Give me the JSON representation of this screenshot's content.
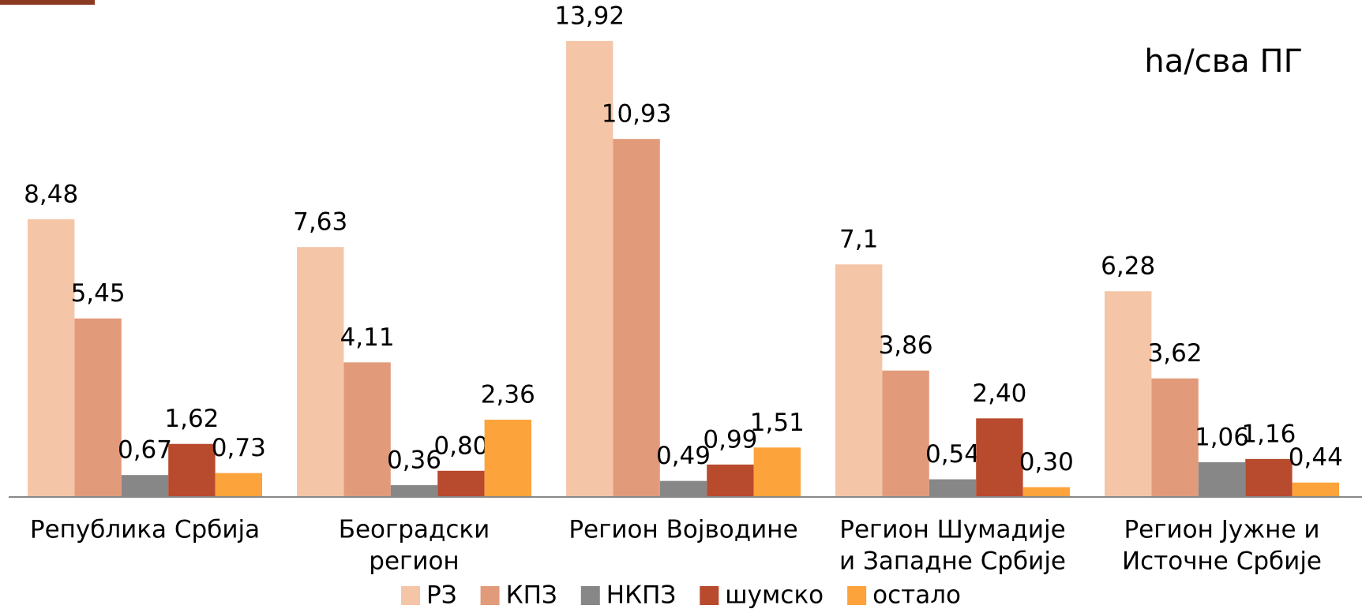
{
  "chart_data": {
    "type": "bar",
    "unit_label": "ha/сва ПГ",
    "categories": [
      [
        "Република Србија"
      ],
      [
        "Београдски",
        "регион"
      ],
      [
        "Регион Војводине"
      ],
      [
        "Регион Шумадије",
        "и Западне Србије"
      ],
      [
        "Регион Јужне и",
        "Источне Србије"
      ]
    ],
    "series": [
      {
        "name": "РЗ",
        "color": "#f5c5a8",
        "values": [
          8.48,
          7.63,
          13.92,
          7.1,
          6.28
        ],
        "value_labels": [
          "8,48",
          "7,63",
          "13,92",
          "7,1",
          "6,28"
        ]
      },
      {
        "name": "КПЗ",
        "color": "#e29b7a",
        "values": [
          5.45,
          4.11,
          10.93,
          3.86,
          3.62
        ],
        "value_labels": [
          "5,45",
          "4,11",
          "10,93",
          "3,86",
          "3,62"
        ]
      },
      {
        "name": "НКПЗ",
        "color": "#878787",
        "values": [
          0.67,
          0.36,
          0.49,
          0.54,
          1.06
        ],
        "value_labels": [
          "0,67",
          "0,36",
          "0,49",
          "0,54",
          "1,06"
        ]
      },
      {
        "name": "шумско",
        "color": "#b84a2e",
        "values": [
          1.62,
          0.8,
          0.99,
          2.4,
          1.16
        ],
        "value_labels": [
          "1,62",
          "0,80",
          "0,99",
          "2,40",
          "1,16"
        ]
      },
      {
        "name": "остало",
        "color": "#fca33c",
        "values": [
          0.73,
          2.36,
          1.51,
          0.3,
          0.44
        ],
        "value_labels": [
          "0,73",
          "2,36",
          "1,51",
          "0,30",
          "0,44"
        ]
      }
    ],
    "legend": "bottom"
  }
}
